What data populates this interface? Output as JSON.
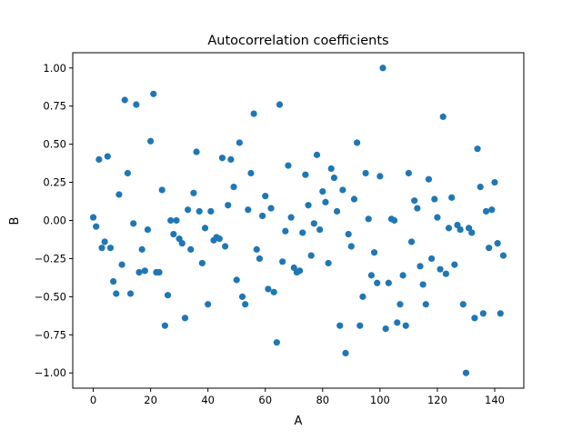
{
  "chart_data": {
    "type": "scatter",
    "title": "Autocorrelation coefficients",
    "xlabel": "A",
    "ylabel": "B",
    "xlim": [
      -7.15,
      150.15
    ],
    "ylim": [
      -1.1,
      1.1
    ],
    "xticks": [
      0,
      20,
      40,
      60,
      80,
      100,
      120,
      140
    ],
    "yticks": [
      -1.0,
      -0.75,
      -0.5,
      -0.25,
      0.0,
      0.25,
      0.5,
      0.75,
      1.0
    ],
    "xtick_labels": [
      "0",
      "20",
      "40",
      "60",
      "80",
      "100",
      "120",
      "140"
    ],
    "ytick_labels": [
      "−1.00",
      "−0.75",
      "−0.50",
      "−0.25",
      "0.00",
      "0.25",
      "0.50",
      "0.75",
      "1.00"
    ],
    "grid": false,
    "legend": "none",
    "marker_color": "#1f77b4",
    "series": [
      {
        "x": [
          0,
          1,
          2,
          3,
          4,
          5,
          6,
          7,
          8,
          9,
          10,
          11,
          12,
          13,
          14,
          15,
          16,
          17,
          18,
          19,
          20,
          21,
          22,
          23,
          24,
          25,
          26,
          27,
          28,
          29,
          30,
          31,
          32,
          33,
          34,
          35,
          36,
          37,
          38,
          39,
          40,
          41,
          42,
          43,
          44,
          45,
          46,
          47,
          48,
          49,
          50,
          51,
          52,
          53,
          54,
          55,
          56,
          57,
          58,
          59,
          60,
          61,
          62,
          63,
          64,
          65,
          66,
          67,
          68,
          69,
          70,
          71,
          72,
          73,
          74,
          75,
          76,
          77,
          78,
          79,
          80,
          81,
          82,
          83,
          84,
          85,
          86,
          87,
          88,
          89,
          90,
          91,
          92,
          93,
          94,
          95,
          96,
          97,
          98,
          99,
          100,
          101,
          102,
          103,
          104,
          105,
          106,
          107,
          108,
          109,
          110,
          111,
          112,
          113,
          114,
          115,
          116,
          117,
          118,
          119,
          120,
          121,
          122,
          123,
          124,
          125,
          126,
          127,
          128,
          129,
          130,
          131,
          132,
          133,
          134,
          135,
          136,
          137,
          138,
          139,
          140,
          141,
          142,
          143
        ],
        "y": [
          0.02,
          -0.04,
          0.4,
          -0.18,
          -0.14,
          0.42,
          -0.18,
          -0.4,
          -0.48,
          0.17,
          -0.29,
          0.79,
          0.31,
          -0.48,
          -0.02,
          0.76,
          -0.34,
          -0.19,
          -0.33,
          -0.06,
          0.52,
          0.83,
          -0.34,
          -0.34,
          0.2,
          -0.69,
          -0.49,
          0.0,
          -0.09,
          0.0,
          -0.12,
          -0.15,
          -0.64,
          0.07,
          -0.19,
          0.18,
          0.45,
          0.06,
          -0.28,
          -0.05,
          -0.55,
          0.06,
          -0.13,
          -0.11,
          -0.12,
          0.41,
          -0.17,
          0.1,
          0.4,
          0.22,
          -0.39,
          0.51,
          -0.5,
          -0.55,
          0.07,
          0.31,
          0.7,
          -0.19,
          -0.25,
          0.03,
          0.16,
          -0.45,
          0.08,
          -0.47,
          -0.8,
          0.76,
          -0.27,
          -0.07,
          0.36,
          0.02,
          -0.31,
          -0.34,
          -0.33,
          -0.08,
          0.3,
          0.1,
          -0.23,
          -0.02,
          0.43,
          -0.06,
          0.19,
          0.12,
          -0.28,
          0.34,
          0.28,
          0.06,
          -0.69,
          0.2,
          -0.87,
          -0.09,
          -0.17,
          0.14,
          0.51,
          -0.69,
          -0.5,
          0.31,
          0.01,
          -0.36,
          -0.21,
          -0.41,
          0.29,
          1.0,
          -0.71,
          -0.41,
          0.01,
          0.0,
          -0.67,
          -0.55,
          -0.36,
          -0.69,
          0.31,
          -0.14,
          0.13,
          0.08,
          -0.3,
          -0.42,
          -0.55,
          0.27,
          -0.25,
          0.14,
          0.02,
          -0.32,
          0.68,
          -0.35,
          -0.05,
          0.15,
          -0.29,
          -0.03,
          -0.06,
          -0.55,
          -1.0,
          -0.05,
          -0.08,
          -0.64,
          0.47,
          0.22,
          -0.61,
          0.06,
          -0.18,
          0.07,
          0.25,
          -0.15,
          -0.61,
          -0.23
        ]
      }
    ]
  }
}
